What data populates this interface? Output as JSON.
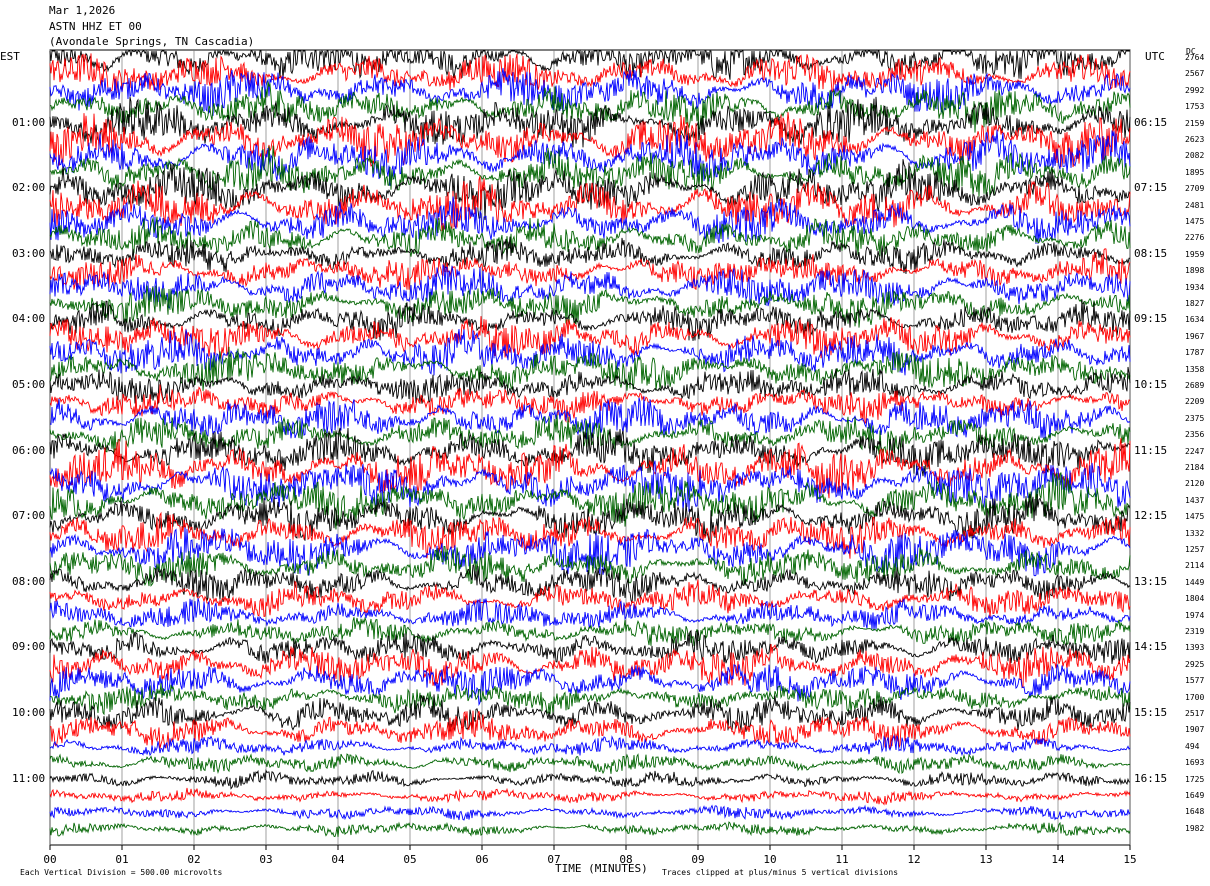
{
  "header": {
    "date": "Mar 1,2026",
    "station": "ASTN HHZ ET 00",
    "location": "(Avondale Springs, TN Cascadia)"
  },
  "left_tz": "EST",
  "right_tz": "UTC",
  "dc_label": "DC",
  "left_times": [
    "01:00",
    "02:00",
    "03:00",
    "04:00",
    "05:00",
    "06:00",
    "07:00",
    "08:00",
    "09:00",
    "10:00",
    "11:00"
  ],
  "right_times": [
    "06:15",
    "07:15",
    "08:15",
    "09:15",
    "10:15",
    "11:15",
    "12:15",
    "13:15",
    "14:15",
    "15:15",
    "16:15"
  ],
  "footer": {
    "scale": "Each Vertical Division =  500.00 microvolts",
    "xlabel": "TIME (MINUTES)",
    "clip": "Traces clipped at plus/minus 5 vertical divisions"
  },
  "chart_data": {
    "type": "line",
    "title": "ASTN HHZ ET 00",
    "xlabel": "TIME (MINUTES)",
    "x_ticks": [
      "00",
      "01",
      "02",
      "03",
      "04",
      "05",
      "06",
      "07",
      "08",
      "09",
      "10",
      "11",
      "12",
      "13",
      "14",
      "15"
    ],
    "x_range": [
      0,
      15
    ],
    "trace_colors": [
      "#000000",
      "#ff0000",
      "#0000ff",
      "#006400"
    ],
    "grid": "vertical lines each minute",
    "dc_offsets": [
      2764,
      2567,
      2992,
      1753,
      2159,
      2623,
      2082,
      1895,
      2709,
      2481,
      1475,
      2276,
      1959,
      1898,
      1934,
      1827,
      1634,
      1967,
      1787,
      1358,
      2689,
      2209,
      2375,
      2356,
      2247,
      2184,
      2120,
      1437,
      1475,
      1332,
      1257,
      2114,
      1449,
      1804,
      1974,
      2319,
      1393,
      2925,
      1577,
      1700,
      2517,
      1907,
      494,
      1693,
      1725,
      1649,
      1648,
      1982
    ],
    "amplitudes": [
      1.6,
      1.5,
      1.6,
      1.5,
      1.8,
      1.9,
      1.8,
      1.6,
      1.8,
      1.9,
      1.6,
      1.4,
      1.2,
      1.3,
      1.5,
      1.4,
      1.3,
      1.5,
      1.6,
      1.5,
      1.3,
      1.2,
      1.5,
      1.4,
      1.6,
      1.9,
      1.8,
      1.7,
      1.6,
      1.5,
      1.8,
      1.4,
      1.3,
      1.2,
      1.1,
      1.0,
      1.2,
      1.5,
      1.4,
      1.1,
      1.3,
      1.2,
      0.7,
      0.7,
      0.6,
      0.5,
      0.5,
      0.5
    ]
  }
}
